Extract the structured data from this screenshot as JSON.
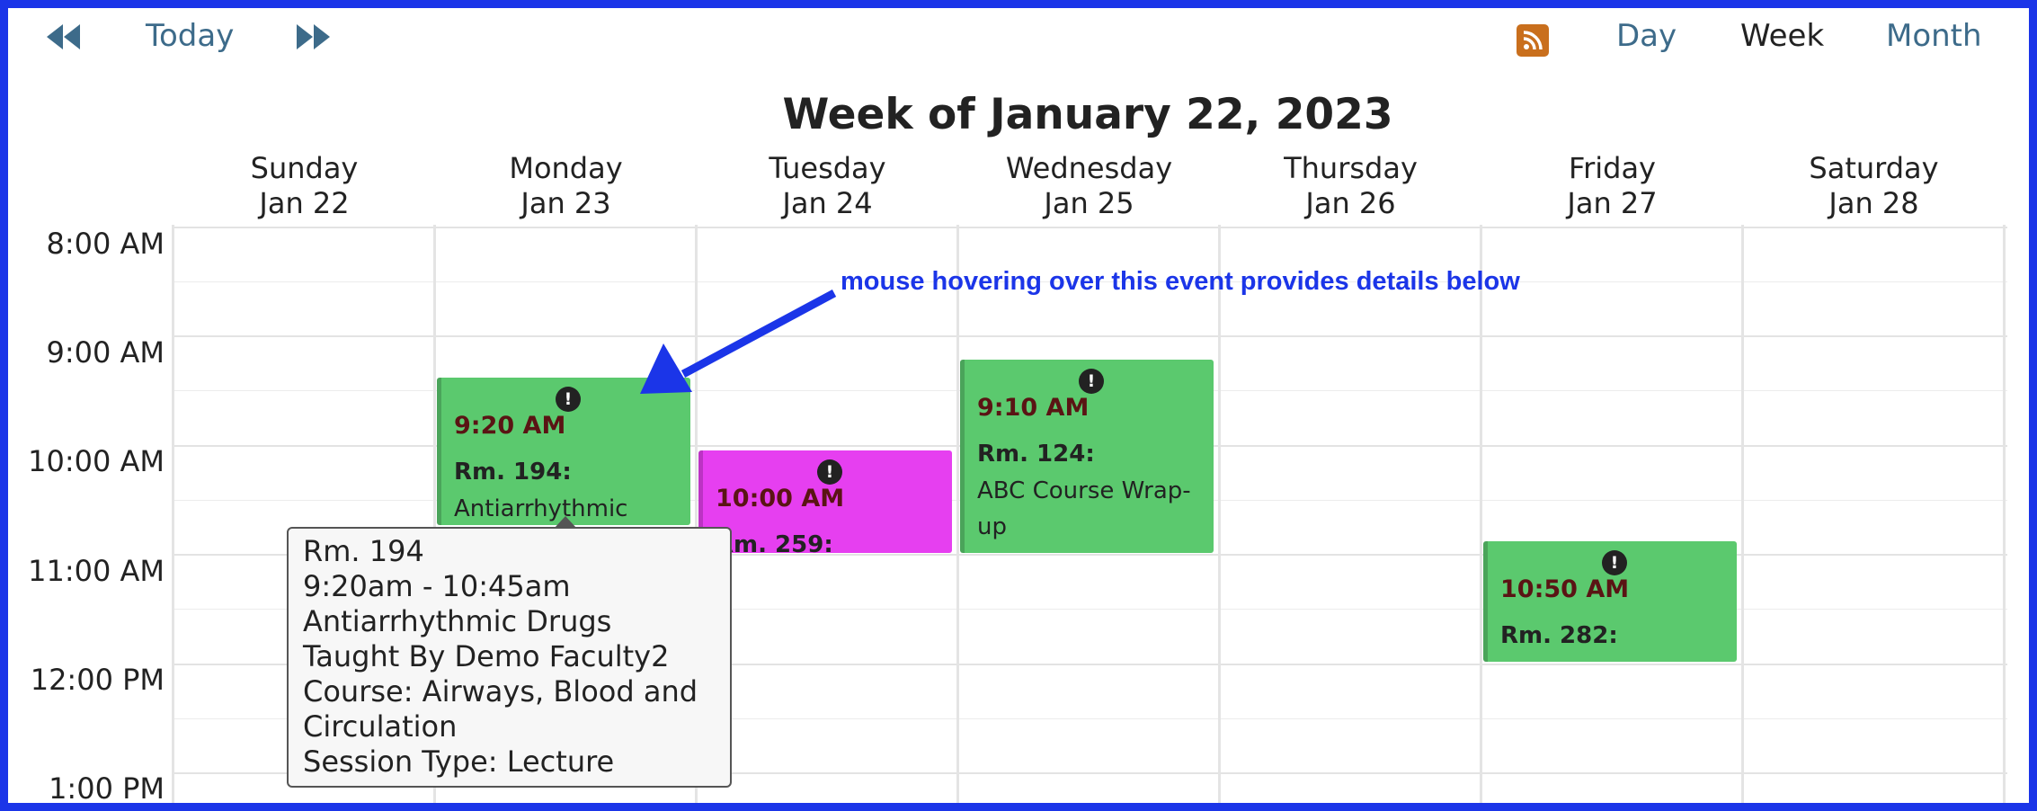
{
  "toolbar": {
    "prev_icon": "double-chevron-left-icon",
    "today_label": "Today",
    "next_icon": "double-chevron-right-icon",
    "rss_icon": "rss-feed-icon",
    "view_day": "Day",
    "view_week": "Week",
    "view_month": "Month",
    "active_view": "Week"
  },
  "title": "Week of January 22, 2023",
  "days": [
    {
      "name": "Sunday",
      "date": "Jan 22"
    },
    {
      "name": "Monday",
      "date": "Jan 23"
    },
    {
      "name": "Tuesday",
      "date": "Jan 24"
    },
    {
      "name": "Wednesday",
      "date": "Jan 25"
    },
    {
      "name": "Thursday",
      "date": "Jan 26"
    },
    {
      "name": "Friday",
      "date": "Jan 27"
    },
    {
      "name": "Saturday",
      "date": "Jan 28"
    }
  ],
  "times": [
    "8:00 AM",
    "9:00 AM",
    "10:00 AM",
    "11:00 AM",
    "12:00 PM",
    "1:00 PM"
  ],
  "events": [
    {
      "time": "9:20 AM",
      "room": "Rm. 194:",
      "title": "Antiarrhythmic",
      "color": "#5bc96e"
    },
    {
      "time": "10:00 AM",
      "room": "Rm. 259:",
      "title": "",
      "color": "#e63ff0"
    },
    {
      "time": "9:10 AM",
      "room": "Rm. 124:",
      "title": "ABC Course Wrap-up",
      "color": "#5bc96e"
    },
    {
      "time": "10:50 AM",
      "room": "Rm. 282:",
      "title": "",
      "color": "#5bc96e"
    }
  ],
  "tooltip": {
    "lines": [
      "Rm. 194",
      "9:20am - 10:45am",
      "Antiarrhythmic Drugs",
      "Taught By Demo Faculty2",
      "Course: Airways, Blood and",
      "Circulation",
      "Session Type: Lecture"
    ]
  },
  "annotation": {
    "text": "mouse hovering over this event provides details below",
    "color": "#1b35e8"
  },
  "colors": {
    "frame": "#1b35e8",
    "link": "#3d6b8a",
    "rss": "#c96f1d"
  }
}
